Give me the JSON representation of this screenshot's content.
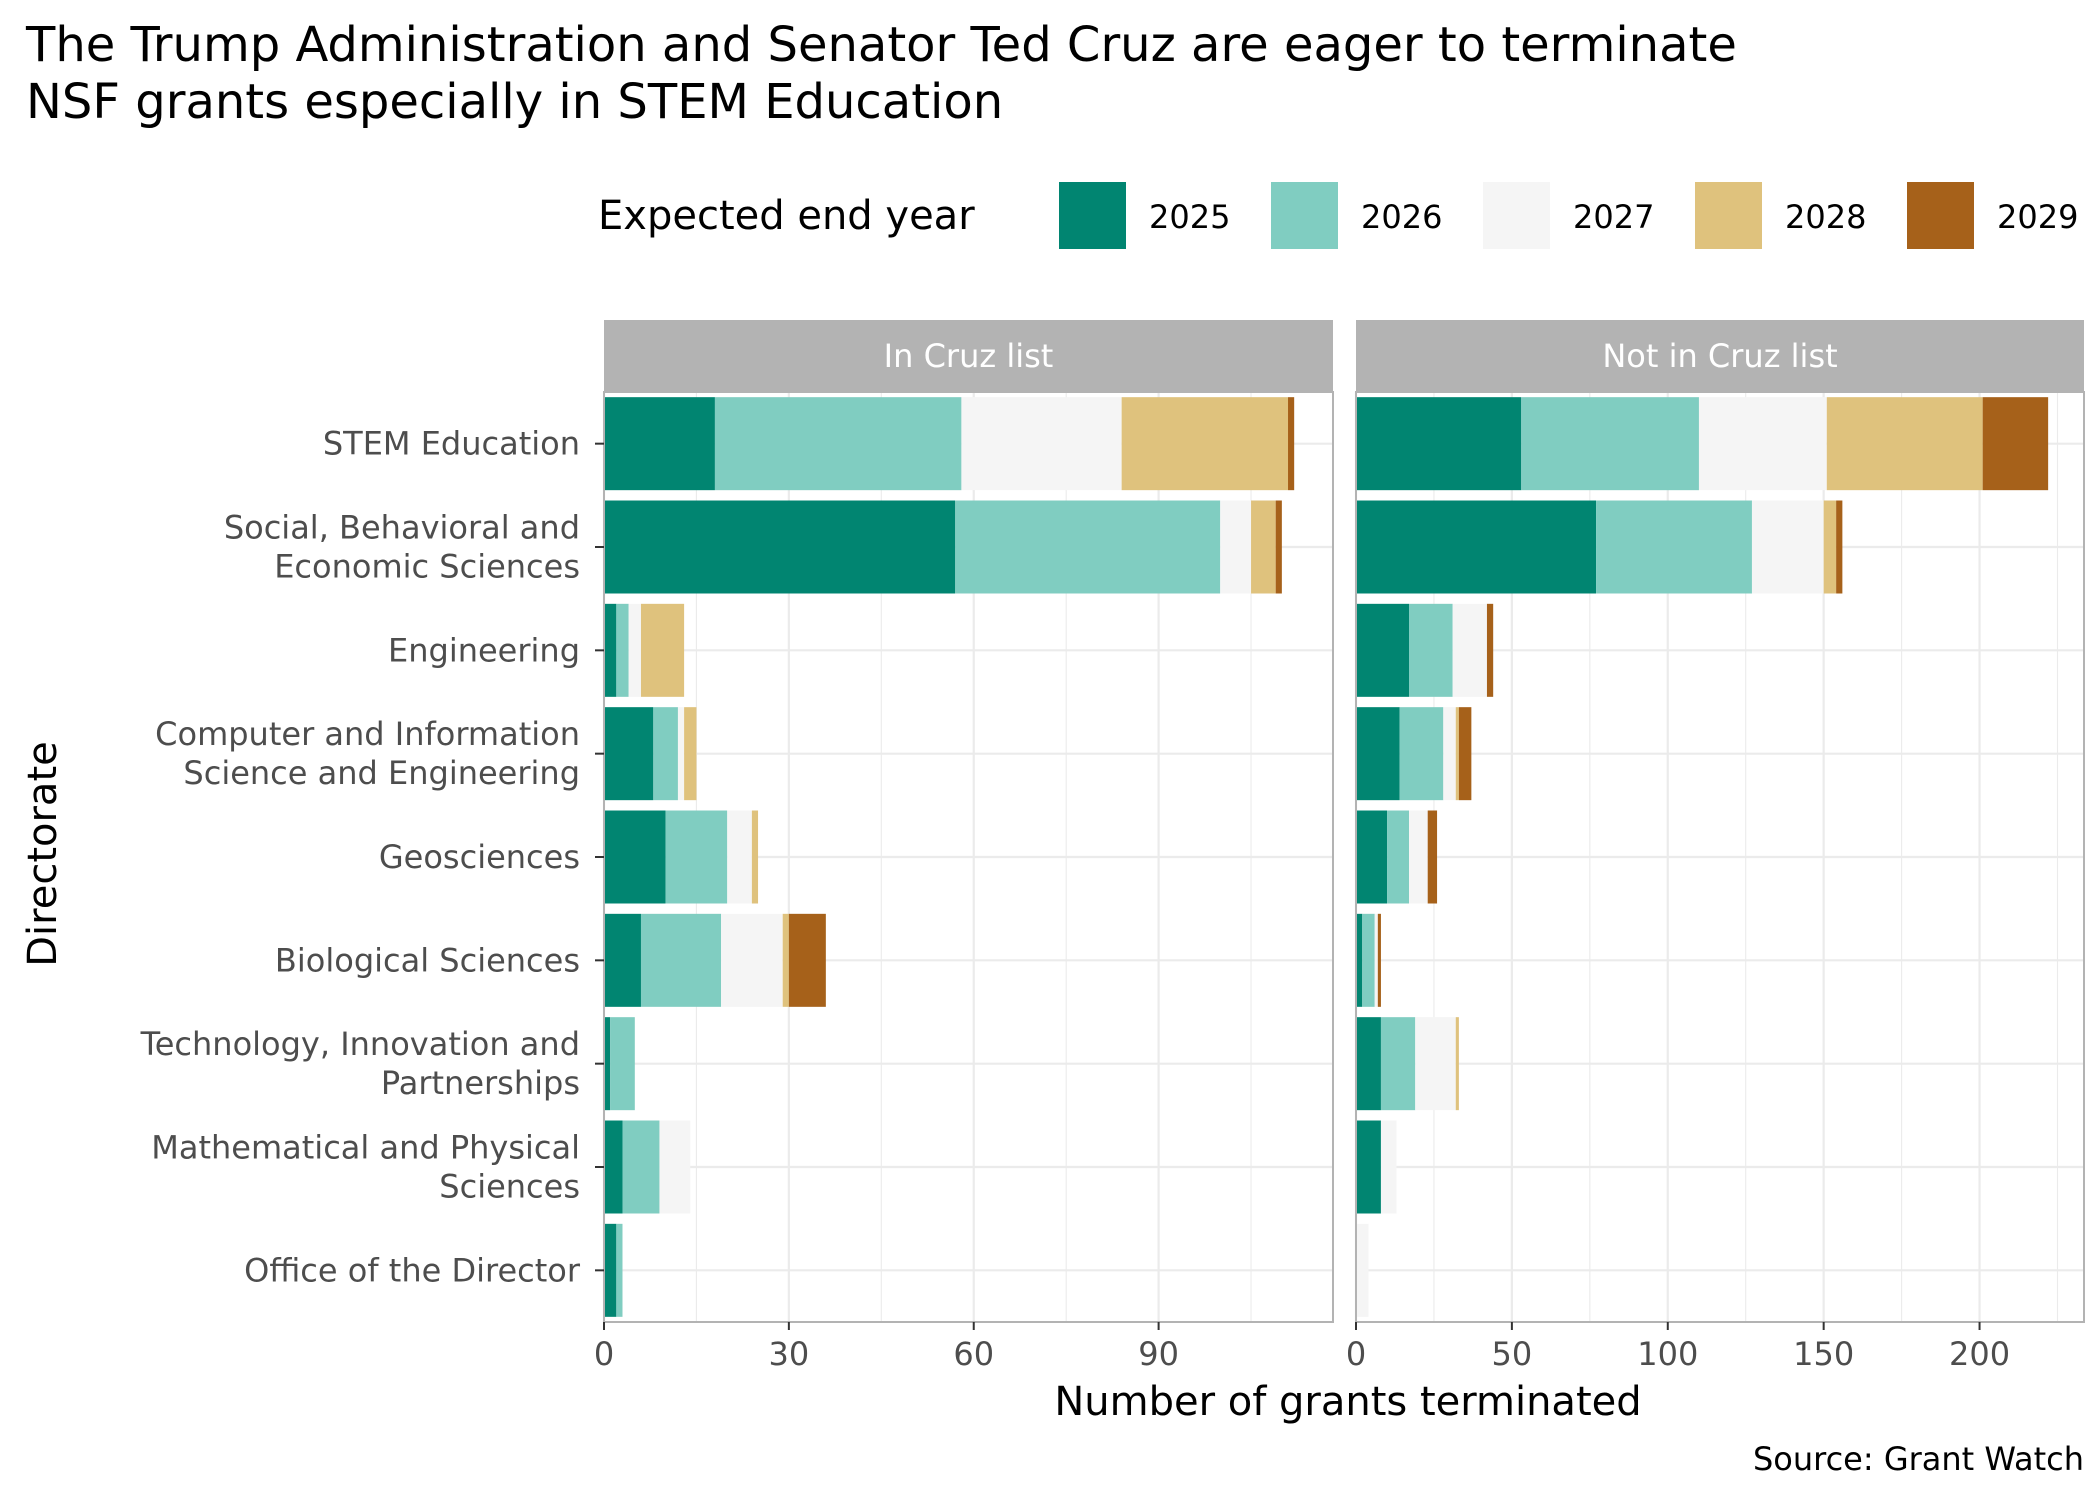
{
  "title_lines": [
    "The Trump Administration and Senator Ted Cruz are eager to terminate",
    "NSF grants especially in STEM Education"
  ],
  "legend": {
    "title": "Expected end year",
    "placement": "top"
  },
  "colors": {
    "2025": "#018571",
    "2026": "#80cdc1",
    "2027": "#f5f5f5",
    "2028": "#dfc27d",
    "2029": "#a6611a",
    "strip_bg": "#b3b3b3",
    "grid": "#ebebeb",
    "panel_border": "#b3b3b3"
  },
  "caption": "Source: Grant Watch",
  "chart_data": {
    "type": "bar",
    "orientation": "horizontal",
    "stacked": true,
    "xlabel": "Number of grants terminated",
    "ylabel": "Directorate",
    "categories": [
      [
        "STEM Education"
      ],
      [
        "Social, Behavioral and",
        "Economic Sciences"
      ],
      [
        "Engineering"
      ],
      [
        "Computer and Information",
        "Science and Engineering"
      ],
      [
        "Geosciences"
      ],
      [
        "Biological Sciences"
      ],
      [
        "Technology, Innovation and",
        "Partnerships"
      ],
      [
        "Mathematical and Physical",
        "Sciences"
      ],
      [
        "Office of the Director"
      ]
    ],
    "series_names": [
      "2025",
      "2026",
      "2027",
      "2028",
      "2029"
    ],
    "grid": true,
    "panels": [
      {
        "label": "In Cruz list",
        "xlim": [
          0,
          118.3
        ],
        "xticks": [
          0,
          30,
          60,
          90
        ],
        "series": [
          {
            "name": "2025",
            "values": [
              18,
              57,
              2,
              8,
              10,
              6,
              1,
              3,
              2
            ]
          },
          {
            "name": "2026",
            "values": [
              40,
              43,
              2,
              4,
              10,
              13,
              4,
              6,
              1
            ]
          },
          {
            "name": "2027",
            "values": [
              26,
              5,
              2,
              1,
              4,
              10,
              0,
              5,
              0
            ]
          },
          {
            "name": "2028",
            "values": [
              27,
              4,
              7,
              2,
              1,
              1,
              0,
              0,
              0
            ]
          },
          {
            "name": "2029",
            "values": [
              1,
              1,
              0,
              0,
              0,
              6,
              0,
              0,
              0
            ]
          }
        ]
      },
      {
        "label": "Not in Cruz list",
        "xlim": [
          0,
          233.5
        ],
        "xticks": [
          0,
          50,
          100,
          150,
          200
        ],
        "series": [
          {
            "name": "2025",
            "values": [
              53,
              77,
              17,
              14,
              10,
              2,
              8,
              8,
              0
            ]
          },
          {
            "name": "2026",
            "values": [
              57,
              50,
              14,
              14,
              7,
              4,
              11,
              0,
              0
            ]
          },
          {
            "name": "2027",
            "values": [
              41,
              23,
              11,
              4,
              6,
              1,
              13,
              5,
              4
            ]
          },
          {
            "name": "2028",
            "values": [
              50,
              4,
              0,
              1,
              0,
              0,
              1,
              0,
              0
            ]
          },
          {
            "name": "2029",
            "values": [
              21,
              2,
              2,
              4,
              3,
              1,
              0,
              0,
              0
            ]
          }
        ]
      }
    ]
  }
}
